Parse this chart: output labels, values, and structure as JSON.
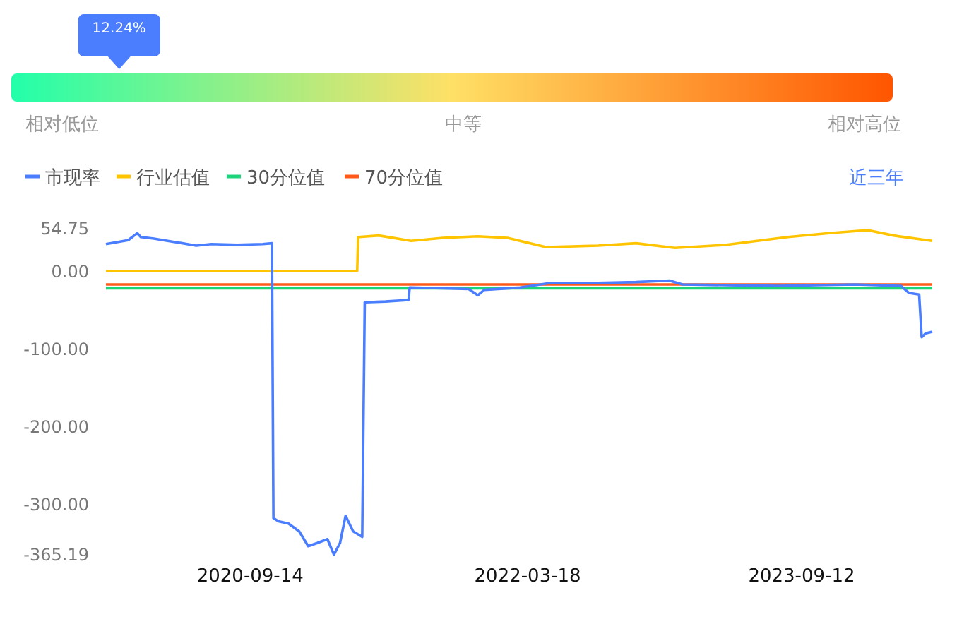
{
  "chart_data": [
    {
      "type": "other",
      "annotations": [
        "相对低位",
        "中等",
        "相对高位"
      ],
      "values": [
        12.24
      ],
      "value_labels": [
        "12.24%"
      ]
    },
    {
      "type": "line",
      "legend": "top left",
      "annotations": [
        "近三年"
      ],
      "xlim": [
        "2019-12-03",
        "2024-05-28"
      ],
      "xticks": [
        "2020-09-14",
        "2022-03-18",
        "2023-09-12"
      ],
      "ylim": [
        -365.19,
        54.75
      ],
      "yticks": [
        {
          "value": -365.19,
          "label": "-365.19"
        },
        {
          "value": -300,
          "label": "-300.00"
        },
        {
          "value": -200,
          "label": "-200.00"
        },
        {
          "value": -100,
          "label": "-100.00"
        },
        {
          "value": 0,
          "label": "0.00"
        },
        54.75
      ],
      "series": [
        {
          "name": "市现率",
          "color": "#4a7eff",
          "x": [
            "2019-12-03",
            "2019-12-21",
            "2020-01-16",
            "2020-02-03",
            "2020-02-10",
            "2020-03-07",
            "2020-04-14",
            "2020-05-30",
            "2020-06-29",
            "2020-08-19",
            "2020-10-09",
            "2020-10-27",
            "2020-10-30",
            "2020-11-09",
            "2020-11-29",
            "2020-12-20",
            "2021-01-07",
            "2021-01-25",
            "2021-02-14",
            "2021-02-27",
            "2021-03-11",
            "2021-03-22",
            "2021-04-06",
            "2021-04-24",
            "2021-04-29",
            "2021-06-09",
            "2021-07-25",
            "2021-07-27",
            "2021-10-01",
            "2021-11-21",
            "2021-12-09",
            "2021-12-22",
            "2022-03-03",
            "2022-05-04",
            "2022-08-04",
            "2022-10-19",
            "2022-12-24",
            "2023-01-19",
            "2023-04-16",
            "2023-07-27",
            "2023-10-11",
            "2023-12-27",
            "2024-03-27",
            "2024-04-12",
            "2024-05-02",
            "2024-05-07",
            "2024-05-15",
            "2024-05-28"
          ],
          "values": [
            35,
            37,
            40,
            49,
            44,
            42,
            38,
            33,
            35,
            34,
            35,
            36,
            -318,
            -322,
            -325,
            -335,
            -354,
            -350,
            -345,
            -365,
            -350,
            -315,
            -335,
            -342,
            -40,
            -39,
            -37,
            -21,
            -22,
            -23,
            -31,
            -24,
            -21,
            -15,
            -15,
            -14,
            -12,
            -17,
            -18,
            -19,
            -18,
            -17,
            -19,
            -28,
            -30,
            -85,
            -80,
            -78
          ]
        },
        {
          "name": "行业估值",
          "color": "#ffc400",
          "x": [
            "2019-12-03",
            "2021-04-14",
            "2021-04-16",
            "2021-05-27",
            "2021-07-30",
            "2021-10-01",
            "2021-12-09",
            "2022-02-06",
            "2022-04-24",
            "2022-08-04",
            "2022-10-19",
            "2023-01-04",
            "2023-04-16",
            "2023-08-16",
            "2023-11-06",
            "2024-01-21",
            "2024-03-12",
            "2024-05-28"
          ],
          "values": [
            0,
            0,
            44,
            46,
            39,
            43,
            45,
            43,
            31,
            33,
            36,
            30,
            34,
            44,
            49,
            53,
            46,
            39
          ]
        },
        {
          "name": "30分位值",
          "color": "#1ed47a",
          "x": [
            "2019-12-03",
            "2024-05-28"
          ],
          "values": [
            -22,
            -22
          ]
        },
        {
          "name": "70分位值",
          "color": "#ff5a1a",
          "x": [
            "2019-12-03",
            "2024-05-28"
          ],
          "values": [
            -17,
            -17
          ]
        }
      ]
    }
  ]
}
